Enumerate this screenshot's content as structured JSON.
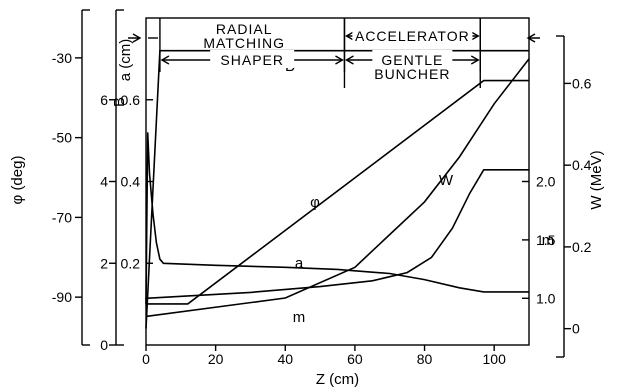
{
  "chart_data": {
    "type": "line",
    "xlabel": "Z (cm)",
    "xlim": [
      0,
      110
    ],
    "x_ticks": [
      "0",
      "20",
      "40",
      "60",
      "80",
      "100"
    ],
    "axes": [
      {
        "id": "phi",
        "label": "φ (deg)",
        "range": [
          -102,
          -20
        ],
        "ticks": [
          "-30",
          "-50",
          "-70",
          "-90"
        ]
      },
      {
        "id": "B",
        "label": "B",
        "range": [
          0,
          8
        ],
        "ticks": [
          "0",
          "2",
          "4",
          "6"
        ]
      },
      {
        "id": "a",
        "label": "a (cm)",
        "range": [
          0,
          0.8
        ],
        "ticks": [
          "0.2",
          "0.4",
          "0.6"
        ]
      },
      {
        "id": "m",
        "label": "m",
        "range": [
          0.6,
          3.4
        ],
        "ticks": [
          "1.0",
          "1.5",
          "2.0"
        ]
      },
      {
        "id": "W",
        "label": "W (MeV)",
        "range": [
          -0.04,
          0.76
        ],
        "ticks": [
          "0",
          "0.2",
          "0.4",
          "0.6"
        ]
      }
    ],
    "sections": [
      {
        "name": "RADIAL MATCHING",
        "from": 0,
        "to": 4
      },
      {
        "name": "SHAPER",
        "from": 4,
        "to": 57
      },
      {
        "name": "ACCELERATOR",
        "from": 57,
        "to": 96
      },
      {
        "name": "GENTLE BUNCHER",
        "from": 57,
        "to": 96
      }
    ],
    "series": [
      {
        "name": "B",
        "axis": "B",
        "x": [
          0,
          4,
          110
        ],
        "y": [
          0.4,
          7.2,
          7.2
        ]
      },
      {
        "name": "φ",
        "axis": "phi",
        "x": [
          0,
          4,
          12,
          97,
          110
        ],
        "y": [
          -91.7,
          -91.7,
          -91.7,
          -35.7,
          -35.7
        ]
      },
      {
        "name": "W",
        "axis": "W",
        "x": [
          0,
          40,
          60,
          80,
          90,
          100,
          110
        ],
        "y": [
          0.03,
          0.075,
          0.15,
          0.31,
          0.42,
          0.55,
          0.66
        ]
      },
      {
        "name": "a",
        "axis": "a",
        "x": [
          0,
          0.5,
          1,
          2,
          3,
          4,
          5,
          20,
          40,
          55,
          70,
          80,
          90,
          97,
          110
        ],
        "y": [
          0.1,
          0.52,
          0.42,
          0.32,
          0.25,
          0.21,
          0.2,
          0.195,
          0.19,
          0.185,
          0.175,
          0.16,
          0.14,
          0.13,
          0.13
        ]
      },
      {
        "name": "m",
        "axis": "m",
        "x": [
          0,
          30,
          50,
          65,
          75,
          82,
          88,
          93,
          97,
          110
        ],
        "y": [
          1.0,
          1.05,
          1.1,
          1.15,
          1.22,
          1.35,
          1.6,
          1.9,
          2.1,
          2.1
        ]
      }
    ]
  }
}
